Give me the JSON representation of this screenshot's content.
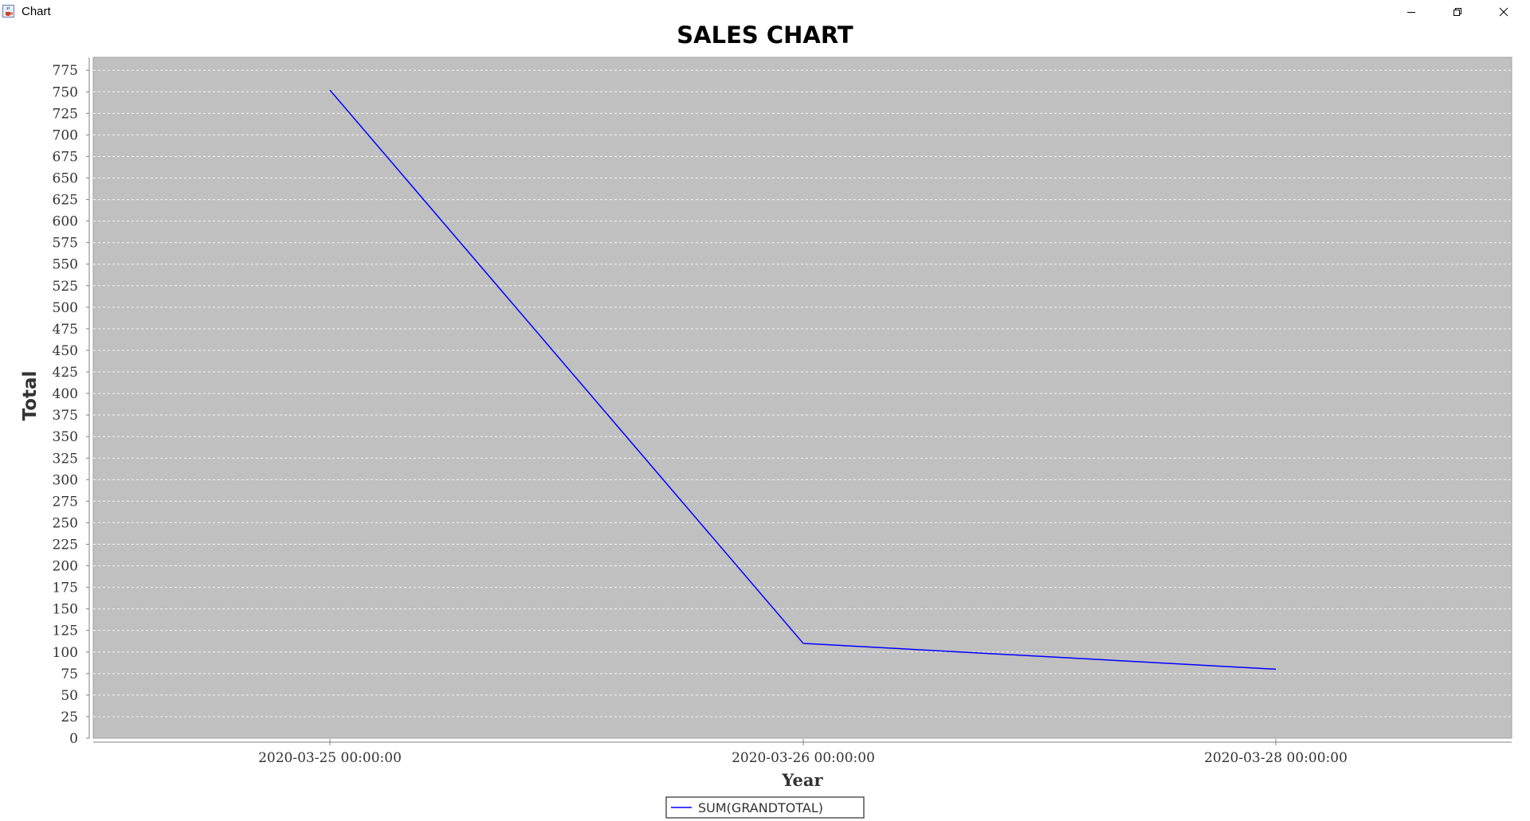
{
  "window": {
    "title": "Chart",
    "icon": "java-cup-icon",
    "controls": [
      "minimize-icon",
      "restore-icon",
      "close-icon"
    ]
  },
  "chart_data": {
    "type": "line",
    "title": "SALES CHART",
    "xlabel": "Year",
    "ylabel": "Total",
    "categories": [
      "2020-03-25 00:00:00",
      "2020-03-26 00:00:00",
      "2020-03-28 00:00:00"
    ],
    "series": [
      {
        "name": "SUM(GRANDTOTAL)",
        "values": [
          752,
          110,
          80
        ],
        "color": "#0000ff"
      }
    ],
    "ylim": [
      0,
      790
    ],
    "yticks": [
      0,
      25,
      50,
      75,
      100,
      125,
      150,
      175,
      200,
      225,
      250,
      275,
      300,
      325,
      350,
      375,
      400,
      425,
      450,
      475,
      500,
      525,
      550,
      575,
      600,
      625,
      650,
      675,
      700,
      725,
      750,
      775
    ],
    "grid": true,
    "legend_position": "bottom",
    "plot_background": "#c0c0c0",
    "gridline_color": "#ffffff"
  }
}
